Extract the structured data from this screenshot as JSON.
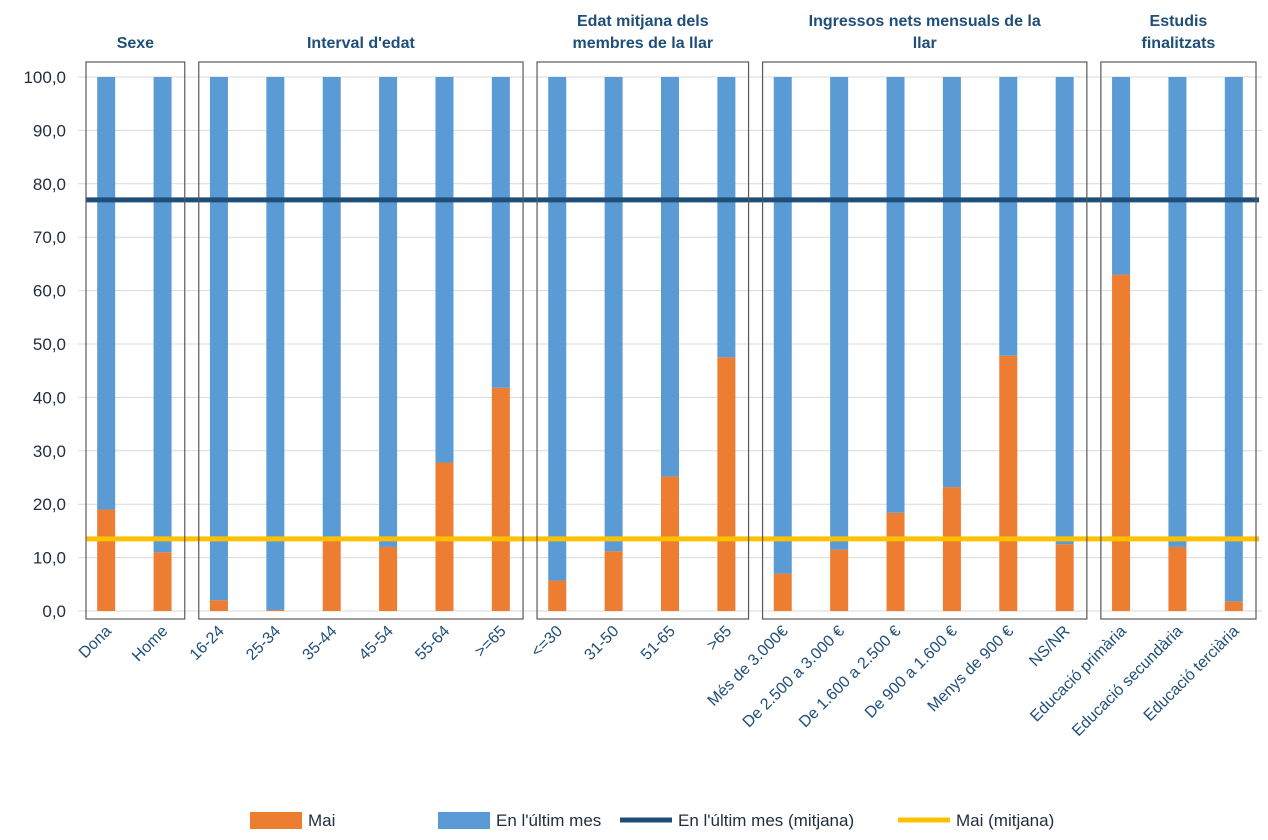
{
  "chart_data": {
    "type": "bar",
    "stacked": true,
    "categories": [
      "Dona",
      "Home",
      "16-24",
      "25-34",
      "35-44",
      "45-54",
      "55-64",
      ">=65",
      "<=30",
      "31-50",
      "51-65",
      ">65",
      "Més de 3.000€",
      "De 2.500 a 3.000 €",
      "De 1.600 a 2.500 €",
      "De 900 a 1.600 €",
      "Menys de 900 €",
      "NS/NR",
      "Educació primària",
      "Educació secundària",
      "Educació terciària"
    ],
    "groups": [
      {
        "title": [
          "Sexe"
        ],
        "start": 0,
        "end": 1
      },
      {
        "title": [
          "Interval d'edat"
        ],
        "start": 2,
        "end": 7
      },
      {
        "title": [
          "Edat mitjana dels",
          "membres de la llar"
        ],
        "start": 8,
        "end": 11
      },
      {
        "title": [
          "Ingressos nets mensuals de la",
          "llar"
        ],
        "start": 12,
        "end": 17
      },
      {
        "title": [
          "Estudis",
          "finalitzats"
        ],
        "start": 18,
        "end": 20
      }
    ],
    "series": [
      {
        "name": "Mai",
        "color": "#ed7d31",
        "values": [
          19.0,
          11.0,
          2.0,
          0.2,
          13.5,
          12.0,
          27.8,
          41.8,
          5.7,
          11.2,
          25.2,
          47.5,
          7.0,
          11.5,
          18.4,
          23.2,
          47.8,
          12.5,
          63.0,
          12.0,
          1.8
        ]
      },
      {
        "name": "En l'últim mes",
        "color": "#5b9bd5",
        "values": [
          81.0,
          89.0,
          98.0,
          99.8,
          86.5,
          88.0,
          72.2,
          58.2,
          94.3,
          88.8,
          74.8,
          52.5,
          93.0,
          88.5,
          81.6,
          76.8,
          52.2,
          87.5,
          37.0,
          88.0,
          98.2
        ]
      }
    ],
    "reference_lines": [
      {
        "name": "En l'últim mes (mitjana)",
        "color": "#1f4e79",
        "value": 77.0
      },
      {
        "name": "Mai (mitjana)",
        "color": "#ffc000",
        "value": 13.5
      }
    ],
    "ylim": [
      0,
      100
    ],
    "yticks": [
      "0,0",
      "10,0",
      "20,0",
      "30,0",
      "40,0",
      "50,0",
      "60,0",
      "70,0",
      "80,0",
      "90,0",
      "100,0"
    ],
    "grid": true,
    "legend_position": "bottom"
  }
}
